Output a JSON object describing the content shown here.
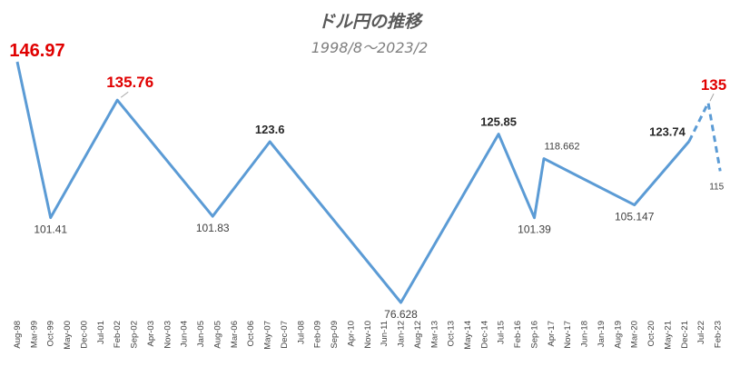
{
  "chart_data": {
    "type": "line",
    "title": "ドル円の推移",
    "subtitle": "1998/8～2023/2",
    "xlabel": "",
    "ylabel": "",
    "ylim": [
      70,
      150
    ],
    "grid": false,
    "legend": "none",
    "line_color": "#5b9bd5",
    "highlight_color": "#e00000",
    "x_ticks": [
      "Aug-98",
      "Mar-99",
      "Oct-99",
      "May-00",
      "Dec-00",
      "Jul-01",
      "Feb-02",
      "Sep-02",
      "Apr-03",
      "Nov-03",
      "Jun-04",
      "Jan-05",
      "Aug-05",
      "Mar-06",
      "Oct-06",
      "May-07",
      "Dec-07",
      "Jul-08",
      "Feb-09",
      "Sep-09",
      "Apr-10",
      "Nov-10",
      "Jun-11",
      "Jan-12",
      "Aug-12",
      "Mar-13",
      "Oct-13",
      "May-14",
      "Dec-14",
      "Jul-15",
      "Feb-16",
      "Sep-16",
      "Apr-17",
      "Nov-17",
      "Jun-18",
      "Jan-19",
      "Aug-19",
      "Mar-20",
      "Oct-20",
      "May-21",
      "Dec-21",
      "Jul-22",
      "Feb-23"
    ],
    "points": [
      {
        "x": "Aug-98",
        "y": 146.97,
        "label": "146.97",
        "style": "red-large"
      },
      {
        "x": "Oct-99",
        "y": 101.41,
        "label": "101.41",
        "style": "normal"
      },
      {
        "x": "Feb-02",
        "y": 135.76,
        "label": "135.76",
        "style": "red"
      },
      {
        "x": "Jun-05",
        "y": 101.83,
        "label": "101.83",
        "style": "normal"
      },
      {
        "x": "Jun-07",
        "y": 123.6,
        "label": "123.6",
        "style": "bold"
      },
      {
        "x": "Jan-12",
        "y": 76.628,
        "label": "76.628",
        "style": "normal"
      },
      {
        "x": "Jun-15",
        "y": 125.85,
        "label": "125.85",
        "style": "bold"
      },
      {
        "x": "Sep-16",
        "y": 101.39,
        "label": "101.39",
        "style": "normal"
      },
      {
        "x": "Jan-17",
        "y": 118.662,
        "label": "118.662",
        "style": "small"
      },
      {
        "x": "Mar-20",
        "y": 105.147,
        "label": "105.147",
        "style": "normal"
      },
      {
        "x": "Feb-22",
        "y": 123.74,
        "label": "123.74",
        "style": "bold"
      },
      {
        "x": "Oct-22",
        "y": 135,
        "label": "135",
        "style": "red",
        "dashed": true
      },
      {
        "x": "Mar-23",
        "y": 115,
        "label": "115",
        "style": "tiny",
        "dashed": true
      }
    ]
  }
}
